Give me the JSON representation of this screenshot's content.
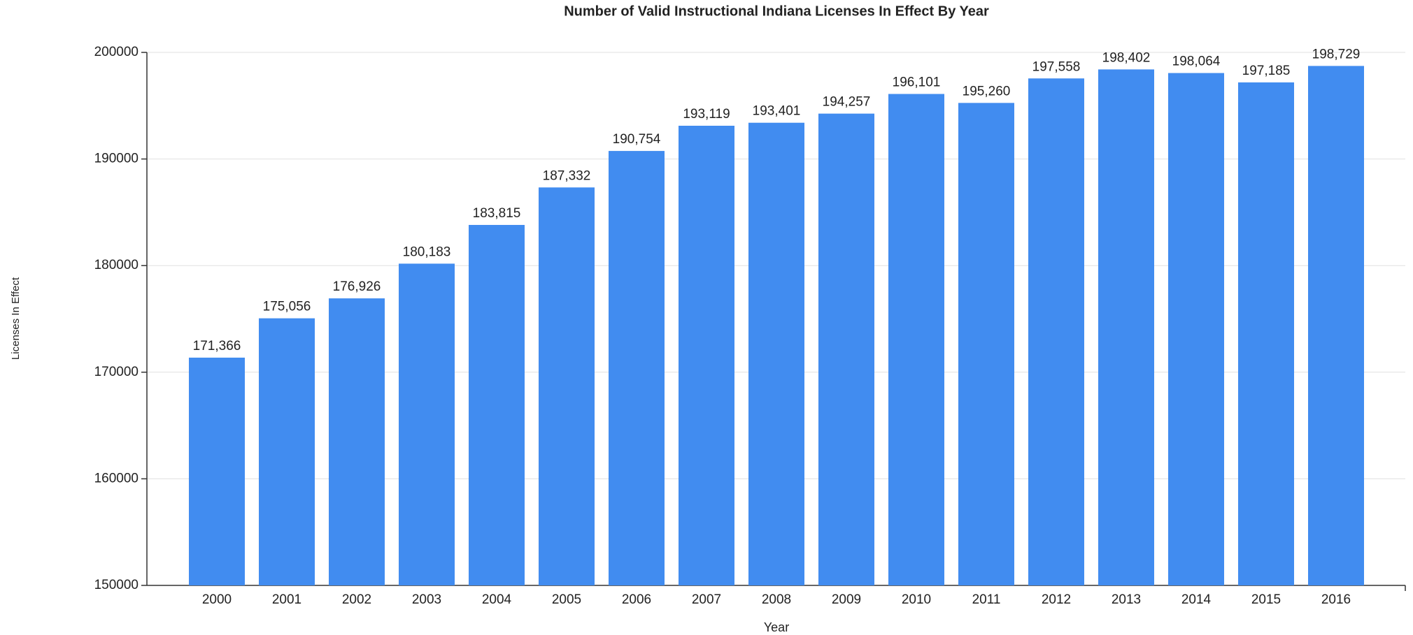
{
  "chart_data": {
    "type": "bar",
    "title": "Number of Valid Instructional Indiana Licenses In Effect By Year",
    "x_label": "Year",
    "y_label": "Licenses In Effect",
    "categories": [
      "2000",
      "2001",
      "2002",
      "2003",
      "2004",
      "2005",
      "2006",
      "2007",
      "2008",
      "2009",
      "2010",
      "2011",
      "2012",
      "2013",
      "2014",
      "2015",
      "2016"
    ],
    "values": [
      171366,
      175056,
      176926,
      180183,
      183815,
      187332,
      190754,
      193119,
      193401,
      194257,
      196101,
      195260,
      197558,
      198402,
      198064,
      197185,
      198729
    ],
    "value_labels": [
      "171,366",
      "175,056",
      "176,926",
      "180,183",
      "183,815",
      "187,332",
      "190,754",
      "193,119",
      "193,401",
      "194,257",
      "196,101",
      "195,260",
      "197,558",
      "198,402",
      "198,064",
      "197,185",
      "198,729"
    ],
    "color": "#418cf0",
    "ylim": [
      150000,
      200000
    ],
    "yticks": [
      150000,
      160000,
      170000,
      180000,
      190000,
      200000
    ],
    "grid": true
  }
}
